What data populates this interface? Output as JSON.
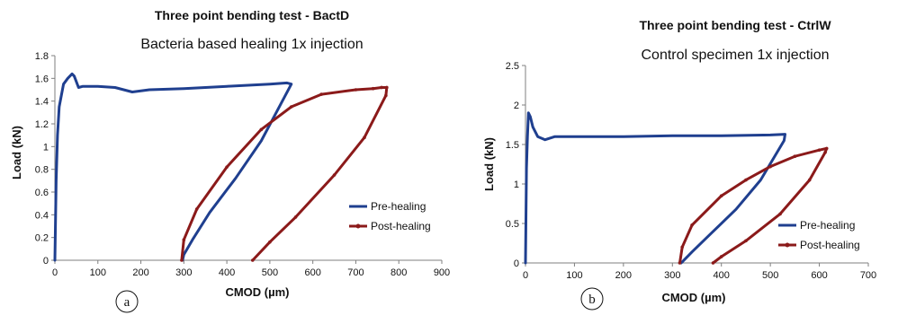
{
  "chart_data": [
    {
      "type": "line",
      "title": "Three point bending test - BactD",
      "subtitle": "Bacteria based healing 1x injection",
      "xlabel": "CMOD (µm)",
      "ylabel": "Load (kN)",
      "xlim": [
        0,
        900
      ],
      "ylim": [
        0,
        1.8
      ],
      "xticks": [
        "0",
        "100",
        "200",
        "300",
        "400",
        "500",
        "600",
        "700",
        "800",
        "900"
      ],
      "yticks": [
        "0",
        "0.2",
        "0.4",
        "0.6",
        "0.8",
        "1",
        "1.2",
        "1.4",
        "1.6",
        "1.8"
      ],
      "panel_label": "a",
      "legend_position": "right",
      "series": [
        {
          "name": "Pre-healing",
          "color": "#1f3f8f",
          "x": [
            0,
            3,
            6,
            10,
            15,
            20,
            30,
            40,
            45,
            55,
            65,
            100,
            140,
            180,
            220,
            300,
            400,
            500,
            540,
            550,
            480,
            420,
            360,
            320,
            300,
            297
          ],
          "y": [
            0,
            0.7,
            1.1,
            1.35,
            1.45,
            1.55,
            1.6,
            1.64,
            1.62,
            1.52,
            1.53,
            1.53,
            1.52,
            1.48,
            1.5,
            1.51,
            1.53,
            1.55,
            1.56,
            1.55,
            1.05,
            0.72,
            0.42,
            0.18,
            0.05,
            0
          ]
        },
        {
          "name": "Post-healing",
          "color": "#8b1a1a",
          "x": [
            295,
            300,
            330,
            400,
            480,
            550,
            620,
            700,
            740,
            760,
            772,
            770,
            720,
            650,
            560,
            500,
            460
          ],
          "y": [
            0,
            0.18,
            0.45,
            0.82,
            1.15,
            1.35,
            1.46,
            1.5,
            1.51,
            1.52,
            1.52,
            1.45,
            1.08,
            0.75,
            0.38,
            0.16,
            0
          ]
        }
      ]
    },
    {
      "type": "line",
      "title": "Three point bending test - CtrlW",
      "subtitle": "Control specimen 1x injection",
      "xlabel": "CMOD (µm)",
      "ylabel": "Load (kN)",
      "xlim": [
        0,
        700
      ],
      "ylim": [
        0,
        2.5
      ],
      "xticks": [
        "0",
        "100",
        "200",
        "300",
        "400",
        "500",
        "600",
        "700"
      ],
      "yticks": [
        "0",
        "0.5",
        "1",
        "1.5",
        "2",
        "2.5"
      ],
      "panel_label": "b",
      "legend_position": "right",
      "series": [
        {
          "name": "Pre-healing",
          "color": "#1f3f8f",
          "x": [
            0,
            2,
            4,
            6,
            10,
            15,
            25,
            40,
            60,
            100,
            200,
            300,
            400,
            500,
            530,
            528,
            480,
            430,
            380,
            340,
            318
          ],
          "y": [
            0,
            1.2,
            1.6,
            1.9,
            1.85,
            1.72,
            1.6,
            1.56,
            1.6,
            1.6,
            1.6,
            1.61,
            1.61,
            1.62,
            1.63,
            1.55,
            1.05,
            0.68,
            0.38,
            0.14,
            0
          ]
        },
        {
          "name": "Post-healing",
          "color": "#8b1a1a",
          "x": [
            315,
            320,
            340,
            400,
            450,
            500,
            550,
            600,
            615,
            612,
            580,
            520,
            450,
            400,
            383
          ],
          "y": [
            0,
            0.2,
            0.48,
            0.85,
            1.05,
            1.22,
            1.35,
            1.43,
            1.45,
            1.4,
            1.05,
            0.62,
            0.28,
            0.08,
            0
          ]
        }
      ]
    }
  ]
}
